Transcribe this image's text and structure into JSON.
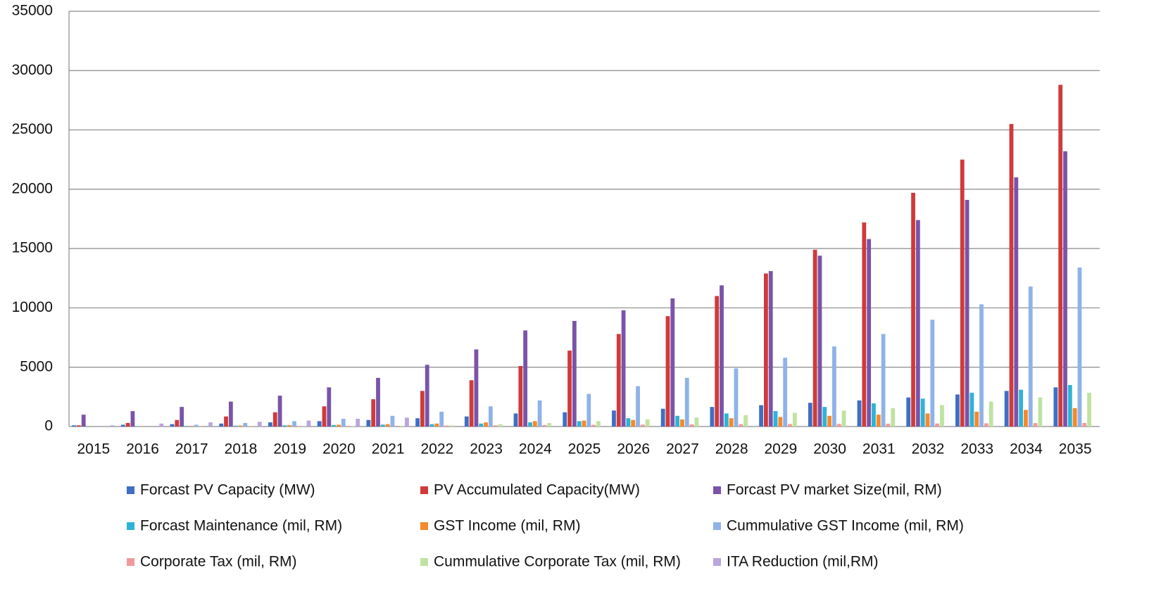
{
  "chart_data": {
    "type": "bar",
    "categories": [
      "2015",
      "2016",
      "2017",
      "2018",
      "2019",
      "2020",
      "2021",
      "2022",
      "2023",
      "2024",
      "2025",
      "2026",
      "2027",
      "2028",
      "2029",
      "2030",
      "2031",
      "2032",
      "2033",
      "2034",
      "2035"
    ],
    "ylim": [
      0,
      35000
    ],
    "yticks": [
      0,
      5000,
      10000,
      15000,
      20000,
      25000,
      30000,
      35000
    ],
    "grid": true,
    "series": [
      {
        "name": "Forcast PV Capacity  (MW)",
        "color": "#3d6fc4",
        "values": [
          100,
          150,
          200,
          250,
          350,
          450,
          550,
          700,
          850,
          1100,
          1200,
          1350,
          1500,
          1650,
          1800,
          2000,
          2200,
          2450,
          2700,
          3000,
          3300
        ]
      },
      {
        "name": "PV Accumulated Capacity(MW)",
        "color": "#d03a3a",
        "values": [
          100,
          300,
          550,
          850,
          1200,
          1700,
          2300,
          3000,
          3900,
          5100,
          6400,
          7800,
          9300,
          11000,
          12900,
          14900,
          17200,
          19700,
          22500,
          25500,
          28800
        ]
      },
      {
        "name": "Forcast PV market Size(mil, RM)",
        "color": "#7a54a8",
        "values": [
          1000,
          1300,
          1650,
          2100,
          2600,
          3300,
          4100,
          5200,
          6500,
          8100,
          8900,
          9800,
          10800,
          11900,
          13100,
          14400,
          15800,
          17400,
          19100,
          21000,
          23200
        ]
      },
      {
        "name": "Forcast  Maintenance (mil, RM)",
        "color": "#2eb3d6",
        "values": [
          20,
          30,
          50,
          70,
          100,
          130,
          160,
          200,
          250,
          350,
          450,
          700,
          900,
          1100,
          1300,
          1650,
          1950,
          2350,
          2850,
          3100,
          3500
        ]
      },
      {
        "name": "GST Income (mil, RM)",
        "color": "#f5892b",
        "values": [
          10,
          30,
          50,
          80,
          110,
          150,
          200,
          250,
          350,
          450,
          500,
          550,
          600,
          700,
          800,
          900,
          1000,
          1100,
          1250,
          1400,
          1550
        ]
      },
      {
        "name": "Cummulative GST Income (mil, RM)",
        "color": "#8fb3e8",
        "values": [
          10,
          50,
          150,
          300,
          450,
          650,
          900,
          1250,
          1700,
          2200,
          2750,
          3400,
          4100,
          4900,
          5800,
          6750,
          7800,
          9000,
          10300,
          11800,
          13400
        ]
      },
      {
        "name": "Corporate Tax (mil, RM)",
        "color": "#f09a9a",
        "values": [
          0,
          10,
          20,
          30,
          40,
          50,
          60,
          80,
          100,
          120,
          140,
          160,
          180,
          200,
          210,
          220,
          230,
          250,
          270,
          290,
          300
        ]
      },
      {
        "name": "Cummulative Corporate Tax (mil, RM)",
        "color": "#bfe3a0",
        "values": [
          0,
          0,
          0,
          10,
          20,
          30,
          50,
          100,
          200,
          300,
          450,
          600,
          750,
          950,
          1150,
          1350,
          1550,
          1800,
          2100,
          2450,
          2850
        ]
      },
      {
        "name": "ITA Reduction (mil,RM)",
        "color": "#b9a6dc",
        "values": [
          100,
          250,
          350,
          400,
          500,
          650,
          750,
          0,
          0,
          0,
          0,
          0,
          0,
          0,
          0,
          0,
          0,
          0,
          0,
          0,
          0
        ]
      }
    ]
  }
}
